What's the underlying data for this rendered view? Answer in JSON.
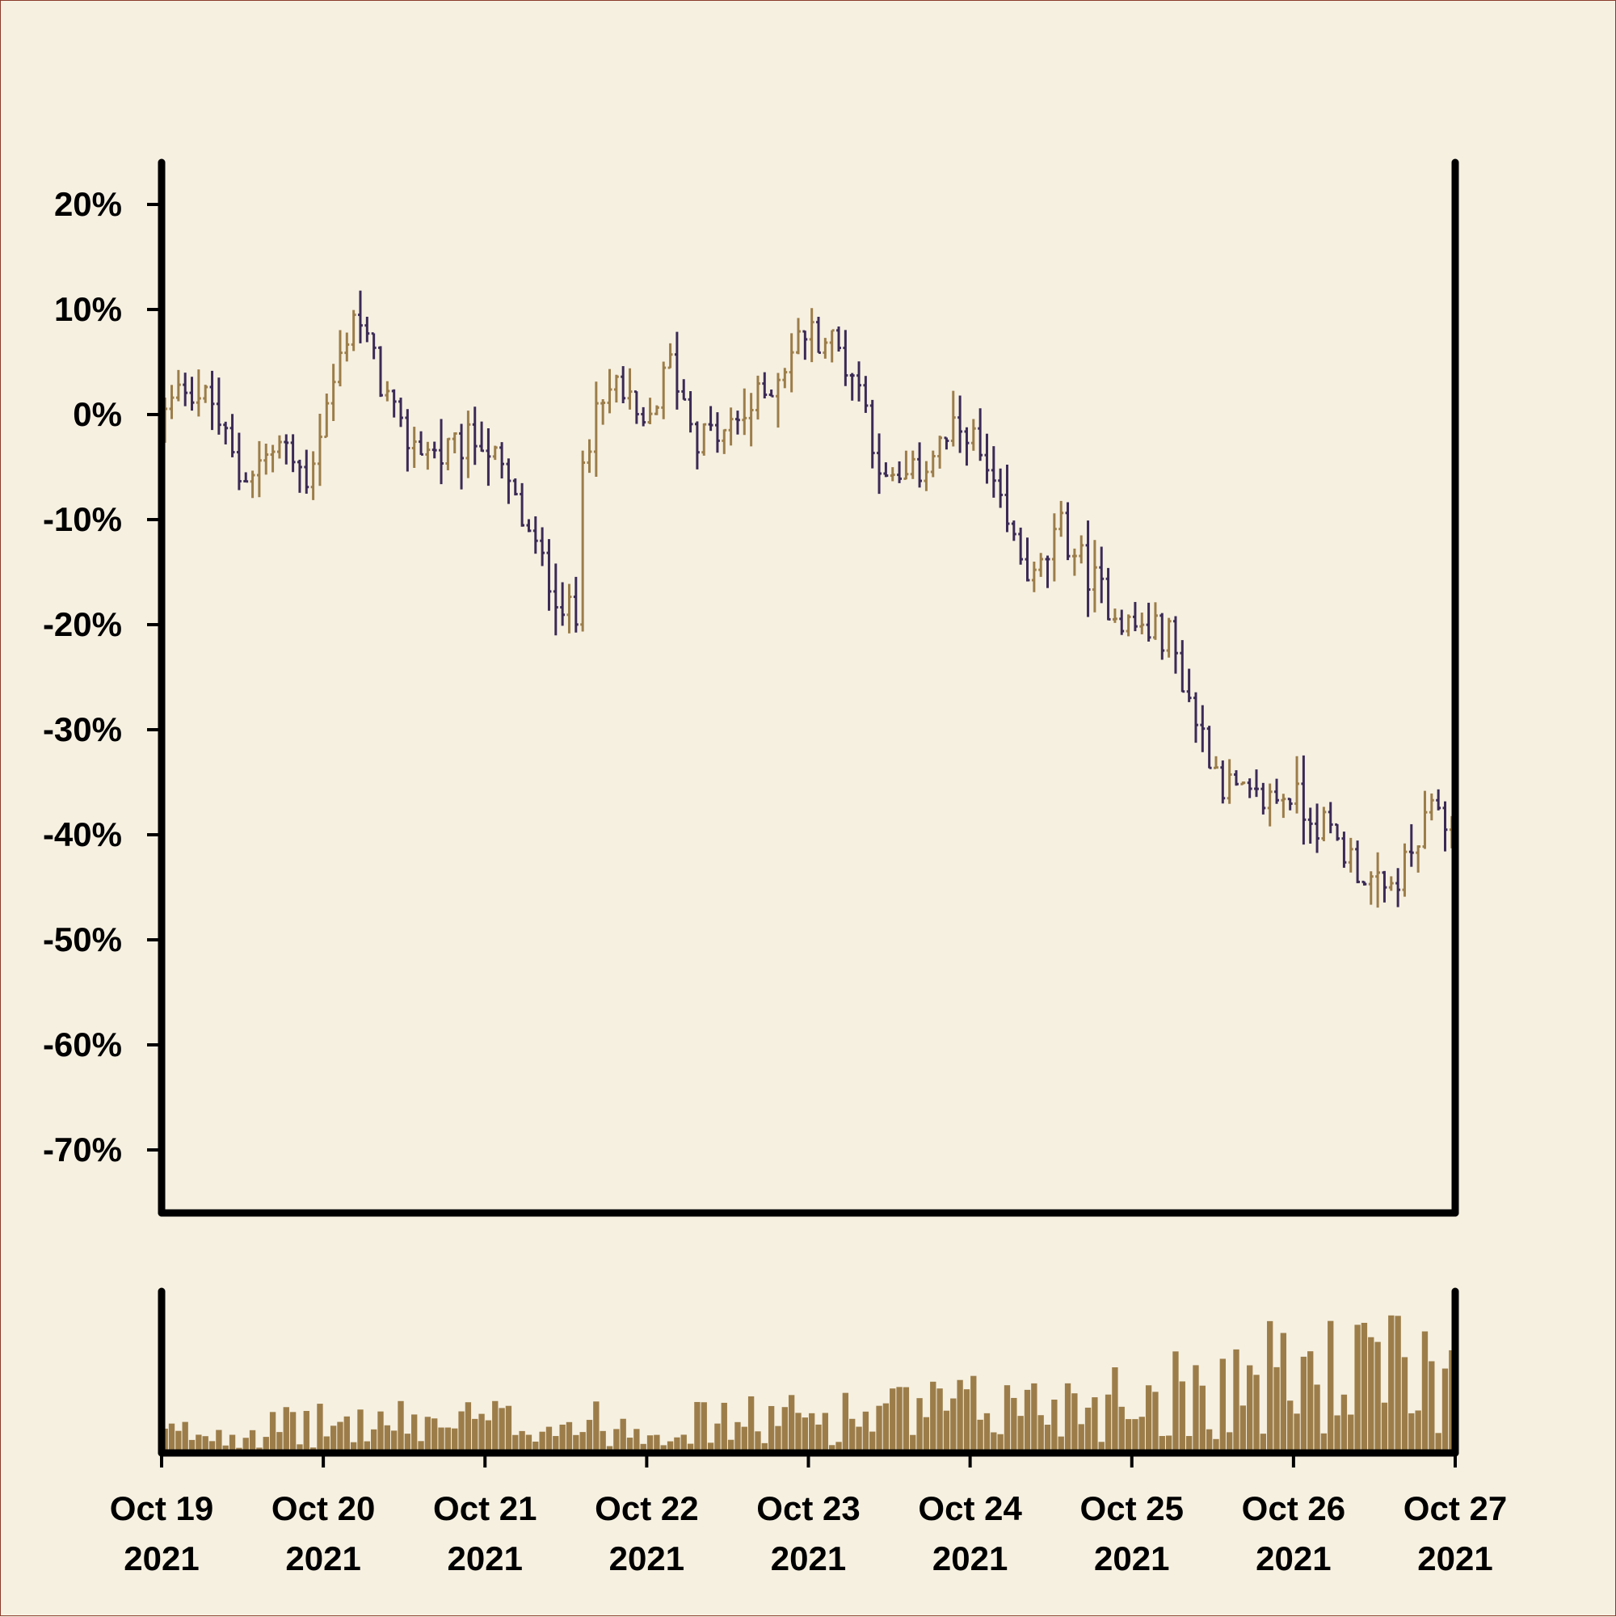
{
  "chart_data": {
    "type": "ohlc",
    "title": "",
    "xlabel": "",
    "ylabel": "",
    "colors": {
      "up": "#9c7d49",
      "down": "#3b2a56",
      "volume": "#9c7d49",
      "background": "#f6f0e1",
      "axis": "#000000"
    },
    "price_panel": {
      "ylim": [
        -0.76,
        0.24
      ],
      "y_ticks": [
        0.2,
        0.1,
        0.0,
        -0.1,
        -0.2,
        -0.3,
        -0.4,
        -0.5,
        -0.6,
        -0.7
      ],
      "y_tick_labels": [
        "20%",
        "10%",
        "0%",
        "-10%",
        "-20%",
        "-30%",
        "-40%",
        "-50%",
        "-60%",
        "-70%"
      ],
      "y_format": "percent",
      "grid": false
    },
    "volume_panel": {
      "ylim": [
        0,
        1.0
      ],
      "grid": false
    },
    "x_axis": {
      "start": "2021-10-19",
      "end": "2021-10-27",
      "ticks": [
        "2021-10-19",
        "2021-10-20",
        "2021-10-21",
        "2021-10-22",
        "2021-10-23",
        "2021-10-24",
        "2021-10-25",
        "2021-10-26",
        "2021-10-27"
      ],
      "tick_labels": [
        [
          "Oct 19",
          "2021"
        ],
        [
          "Oct 20",
          "2021"
        ],
        [
          "Oct 21",
          "2021"
        ],
        [
          "Oct 22",
          "2021"
        ],
        [
          "Oct 23",
          "2021"
        ],
        [
          "Oct 24",
          "2021"
        ],
        [
          "Oct 25",
          "2021"
        ],
        [
          "Oct 26",
          "2021"
        ],
        [
          "Oct 27",
          "2021"
        ]
      ]
    },
    "bar_interval_hours": 1,
    "close_anchors": [
      [
        "2021-10-19T00:00",
        -0.01
      ],
      [
        "2021-10-19T04:00",
        0.03
      ],
      [
        "2021-10-19T08:00",
        0.01
      ],
      [
        "2021-10-19T12:00",
        -0.06
      ],
      [
        "2021-10-19T18:00",
        -0.03
      ],
      [
        "2021-10-19T22:00",
        -0.06
      ],
      [
        "2021-10-20T02:00",
        0.03
      ],
      [
        "2021-10-20T05:00",
        0.1
      ],
      [
        "2021-10-20T08:00",
        0.05
      ],
      [
        "2021-10-20T12:00",
        -0.02
      ],
      [
        "2021-10-20T18:00",
        -0.04
      ],
      [
        "2021-10-21T00:00",
        -0.02
      ],
      [
        "2021-10-21T04:00",
        -0.07
      ],
      [
        "2021-10-21T08:00",
        -0.13
      ],
      [
        "2021-10-21T12:00",
        -0.18
      ],
      [
        "2021-10-21T14:00",
        -0.2
      ],
      [
        "2021-10-21T15:00",
        -0.03
      ],
      [
        "2021-10-21T20:00",
        0.03
      ],
      [
        "2021-10-22T00:00",
        -0.02
      ],
      [
        "2021-10-22T04:00",
        0.05
      ],
      [
        "2021-10-22T08:00",
        -0.02
      ],
      [
        "2021-10-22T12:00",
        -0.02
      ],
      [
        "2021-10-22T18:00",
        0.02
      ],
      [
        "2021-10-23T00:00",
        0.08
      ],
      [
        "2021-10-23T04:00",
        0.07
      ],
      [
        "2021-10-23T08:00",
        0.03
      ],
      [
        "2021-10-23T12:00",
        -0.07
      ],
      [
        "2021-10-23T16:00",
        -0.06
      ],
      [
        "2021-10-23T20:00",
        -0.03
      ],
      [
        "2021-10-24T00:00",
        -0.01
      ],
      [
        "2021-10-24T06:00",
        -0.11
      ],
      [
        "2021-10-24T10:00",
        -0.16
      ],
      [
        "2021-10-24T14:00",
        -0.11
      ],
      [
        "2021-10-24T20:00",
        -0.17
      ],
      [
        "2021-10-25T00:00",
        -0.2
      ],
      [
        "2021-10-25T06:00",
        -0.21
      ],
      [
        "2021-10-25T10:00",
        -0.29
      ],
      [
        "2021-10-25T14:00",
        -0.35
      ],
      [
        "2021-10-25T18:00",
        -0.37
      ],
      [
        "2021-10-26T00:00",
        -0.36
      ],
      [
        "2021-10-26T06:00",
        -0.4
      ],
      [
        "2021-10-26T10:00",
        -0.43
      ],
      [
        "2021-10-26T14:00",
        -0.46
      ],
      [
        "2021-10-26T18:00",
        -0.42
      ],
      [
        "2021-10-26T22:00",
        -0.37
      ],
      [
        "2021-10-27T00:00",
        -0.4
      ]
    ],
    "bar_range_estimate": 0.04,
    "volume_trend": [
      [
        "2021-10-19",
        0.15
      ],
      [
        "2021-10-20",
        0.22
      ],
      [
        "2021-10-21",
        0.25
      ],
      [
        "2021-10-22",
        0.22
      ],
      [
        "2021-10-23",
        0.28
      ],
      [
        "2021-10-24",
        0.35
      ],
      [
        "2021-10-25",
        0.45
      ],
      [
        "2021-10-26",
        0.62
      ],
      [
        "2021-10-27",
        0.65
      ]
    ]
  }
}
